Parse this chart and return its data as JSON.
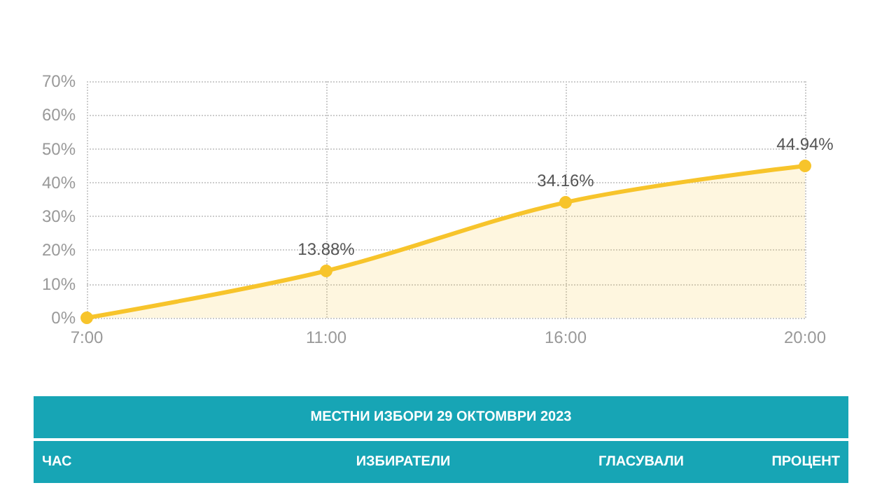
{
  "chart_data": {
    "type": "area",
    "categories": [
      "7:00",
      "11:00",
      "16:00",
      "20:00"
    ],
    "series": [
      {
        "color": "#f7c42b",
        "values": [
          0,
          13.88,
          34.16,
          44.94
        ],
        "value_labels": [
          null,
          "13.88%",
          "34.16%",
          "44.94%"
        ]
      }
    ],
    "ylim": [
      0,
      70
    ],
    "yticks": [
      {
        "value": 0,
        "label": "0%"
      },
      {
        "value": 10,
        "label": "10%"
      },
      {
        "value": 20,
        "label": "20%"
      },
      {
        "value": 30,
        "label": "30%"
      },
      {
        "value": 40,
        "label": "40%"
      },
      {
        "value": 50,
        "label": "50%"
      },
      {
        "value": 60,
        "label": "60%"
      },
      {
        "value": 70,
        "label": "70%"
      }
    ],
    "grid": true,
    "marker": "circle",
    "annotations": [
      "МЕСТНИ ИЗБОРИ 29 ОКТОМВРИ 2023",
      "ЧАС",
      "ИЗБИРАТЕЛИ",
      "ГЛАСУВАЛИ",
      "ПРОЦЕНТ"
    ]
  }
}
